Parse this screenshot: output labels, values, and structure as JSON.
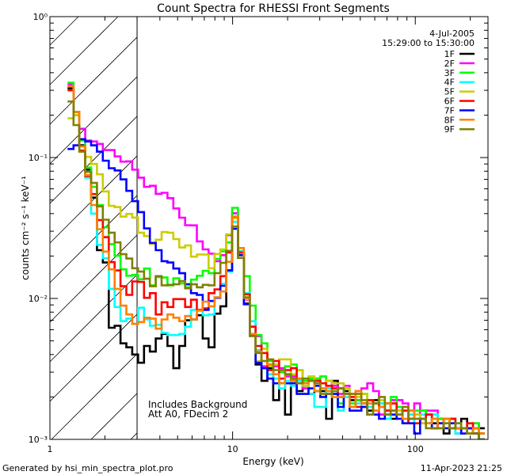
{
  "chart_data": {
    "type": "line",
    "title": "Count Spectra for RHESSI Front Segments",
    "xlabel": "Energy (keV)",
    "ylabel": "counts cm⁻² s⁻¹ keV⁻¹",
    "x_scale": "log",
    "y_scale": "log",
    "xlim": [
      1,
      250
    ],
    "ylim": [
      0.001,
      1
    ],
    "x_ticks": [
      {
        "value": 1,
        "label": "1"
      },
      {
        "value": 10,
        "label": "10"
      },
      {
        "value": 100,
        "label": "100"
      }
    ],
    "y_ticks": [
      {
        "value": 1,
        "label": "10⁰"
      },
      {
        "value": 0.1,
        "label": "10⁻¹"
      },
      {
        "value": 0.01,
        "label": "10⁻²"
      },
      {
        "value": 0.001,
        "label": "10⁻³"
      }
    ],
    "excluded_region_max_kev": 3,
    "date_label": "4-Jul-2005",
    "time_label": "15:29:00 to 15:30:00",
    "annotations": [
      "Includes Background",
      "Att A0, FDecim 2"
    ],
    "series": [
      {
        "name": "1F",
        "color": "#000000",
        "values": [
          0.31,
          0.2,
          0.122,
          0.082,
          0.052,
          0.022,
          0.018,
          0.0062,
          0.0064,
          0.0048,
          0.0045,
          0.004,
          0.0035,
          0.0046,
          0.0042,
          0.0052,
          0.0056,
          0.0046,
          0.0032,
          0.0046,
          0.007,
          0.0071,
          0.0076,
          0.0052,
          0.0045,
          0.0078,
          0.0088,
          0.0158,
          0.038,
          0.021,
          0.0092,
          0.0055,
          0.0034,
          0.0026,
          0.0032,
          0.0019,
          0.0025,
          0.0015,
          0.0026,
          0.0022,
          0.0024,
          0.0021,
          0.0022,
          0.0022,
          0.0014,
          0.0026,
          0.0023,
          0.0022,
          0.0019,
          0.0019,
          0.0018,
          0.0016,
          0.0019,
          0.0015,
          0.0018,
          0.0014,
          0.0016,
          0.0013,
          0.0014,
          0.0015,
          0.0016,
          0.0015,
          0.0013,
          0.0014,
          0.0011,
          0.0014,
          0.0012,
          0.0014,
          0.0012,
          0.0012,
          0.0012
        ]
      },
      {
        "name": "2F",
        "color": "#ff00ff",
        "values": [
          0.33,
          0.21,
          0.16,
          0.132,
          0.13,
          0.125,
          0.113,
          0.113,
          0.102,
          0.0935,
          0.094,
          0.082,
          0.072,
          0.062,
          0.063,
          0.0552,
          0.0562,
          0.0515,
          0.0435,
          0.0374,
          0.0331,
          0.033,
          0.0254,
          0.0223,
          0.0208,
          0.0184,
          0.0203,
          0.0281,
          0.0402,
          0.021,
          0.0098,
          0.0063,
          0.0054,
          0.0033,
          0.0034,
          0.0033,
          0.0032,
          0.0028,
          0.0028,
          0.0026,
          0.0023,
          0.0026,
          0.0027,
          0.0025,
          0.0026,
          0.0024,
          0.0021,
          0.0024,
          0.0017,
          0.0022,
          0.0023,
          0.0025,
          0.0022,
          0.0015,
          0.0016,
          0.0019,
          0.0019,
          0.0018,
          0.0016,
          0.0018,
          0.0013,
          0.0016,
          0.0016,
          0.0014,
          0.0014,
          0.0012,
          0.0011,
          0.0012,
          0.0012,
          0.0013,
          0.0011
        ]
      },
      {
        "name": "3F",
        "color": "#00ff00",
        "values": [
          0.34,
          0.2,
          0.132,
          0.085,
          0.062,
          0.046,
          0.032,
          0.0243,
          0.0201,
          0.0161,
          0.0145,
          0.0147,
          0.0137,
          0.0163,
          0.0124,
          0.0142,
          0.0141,
          0.0124,
          0.0139,
          0.0128,
          0.012,
          0.0136,
          0.0145,
          0.0157,
          0.0151,
          0.0191,
          0.0216,
          0.025,
          0.044,
          0.0217,
          0.0144,
          0.0089,
          0.0055,
          0.0048,
          0.0036,
          0.0034,
          0.003,
          0.0033,
          0.0034,
          0.0031,
          0.0026,
          0.0027,
          0.0027,
          0.0028,
          0.0024,
          0.0021,
          0.0018,
          0.0023,
          0.0018,
          0.0019,
          0.0021,
          0.0019,
          0.0016,
          0.0018,
          0.0016,
          0.002,
          0.0017,
          0.0016,
          0.0015,
          0.0016,
          0.0016,
          0.0015,
          0.0015,
          0.0014,
          0.0013,
          0.0014,
          0.0013,
          0.0012,
          0.0011,
          0.0013,
          0.0011
        ]
      },
      {
        "name": "4F",
        "color": "#00ffff",
        "values": [
          0.32,
          0.2,
          0.112,
          0.072,
          0.04,
          0.024,
          0.0193,
          0.0117,
          0.0087,
          0.0069,
          0.0072,
          0.0066,
          0.0086,
          0.0071,
          0.0064,
          0.0065,
          0.0057,
          0.0055,
          0.0055,
          0.0056,
          0.0063,
          0.0083,
          0.0082,
          0.0076,
          0.0077,
          0.0102,
          0.0127,
          0.0155,
          0.035,
          0.0216,
          0.0109,
          0.0069,
          0.0043,
          0.0032,
          0.0029,
          0.0027,
          0.0023,
          0.0026,
          0.0024,
          0.0026,
          0.0024,
          0.0021,
          0.0017,
          0.0017,
          0.0023,
          0.0021,
          0.0016,
          0.002,
          0.002,
          0.0018,
          0.0017,
          0.0017,
          0.0018,
          0.0018,
          0.0014,
          0.0016,
          0.0015,
          0.0016,
          0.0015,
          0.0013,
          0.0015,
          0.0013,
          0.0015,
          0.0013,
          0.0013,
          0.0013,
          0.0011,
          0.0012,
          0.0012,
          0.0011,
          0.001
        ]
      },
      {
        "name": "5F",
        "color": "#cccc00",
        "values": [
          0.19,
          0.2,
          0.12,
          0.101,
          0.09,
          0.076,
          0.0575,
          0.0454,
          0.0445,
          0.0381,
          0.0398,
          0.0375,
          0.0293,
          0.0277,
          0.0244,
          0.0261,
          0.0296,
          0.0293,
          0.0264,
          0.023,
          0.0238,
          0.0198,
          0.0205,
          0.0205,
          0.0164,
          0.0207,
          0.0223,
          0.0285,
          0.0372,
          0.0209,
          0.0099,
          0.0063,
          0.0036,
          0.0044,
          0.0033,
          0.0034,
          0.0037,
          0.0037,
          0.0029,
          0.0031,
          0.0024,
          0.0028,
          0.0026,
          0.0025,
          0.0026,
          0.0025,
          0.0025,
          0.0023,
          0.0021,
          0.002,
          0.0021,
          0.0019,
          0.0016,
          0.0019,
          0.0016,
          0.0018,
          0.0016,
          0.0017,
          0.0016,
          0.0015,
          0.0013,
          0.0013,
          0.0014,
          0.0013,
          0.0014,
          0.0013,
          0.0012,
          0.0012,
          0.0012,
          0.0011,
          0.0011
        ]
      },
      {
        "name": "6F",
        "color": "#ff0000",
        "values": [
          0.3,
          0.21,
          0.112,
          0.074,
          0.055,
          0.036,
          0.0272,
          0.0181,
          0.0158,
          0.0122,
          0.0106,
          0.0132,
          0.0131,
          0.0101,
          0.0109,
          0.0077,
          0.0094,
          0.0087,
          0.0099,
          0.0099,
          0.0087,
          0.0098,
          0.0083,
          0.0085,
          0.0109,
          0.0116,
          0.0144,
          0.0212,
          0.038,
          0.0212,
          0.0107,
          0.0063,
          0.0046,
          0.0041,
          0.0031,
          0.0036,
          0.0027,
          0.0031,
          0.0032,
          0.0027,
          0.0025,
          0.0026,
          0.0026,
          0.0025,
          0.0024,
          0.0023,
          0.002,
          0.0021,
          0.002,
          0.0017,
          0.0017,
          0.0019,
          0.0018,
          0.0017,
          0.0016,
          0.0018,
          0.0015,
          0.0016,
          0.0013,
          0.0013,
          0.0014,
          0.0015,
          0.0012,
          0.0013,
          0.0014,
          0.0014,
          0.0012,
          0.0012,
          0.0013,
          0.0011,
          0.0011
        ]
      },
      {
        "name": "7F",
        "color": "#0000ff",
        "values": [
          0.115,
          0.122,
          0.135,
          0.13,
          0.122,
          0.11,
          0.095,
          0.084,
          0.081,
          0.07,
          0.058,
          0.049,
          0.041,
          0.0314,
          0.0248,
          0.022,
          0.0184,
          0.018,
          0.0163,
          0.0151,
          0.0126,
          0.0109,
          0.0106,
          0.0083,
          0.0096,
          0.0101,
          0.0123,
          0.0158,
          0.0312,
          0.0203,
          0.0091,
          0.0056,
          0.0035,
          0.0032,
          0.0027,
          0.0025,
          0.0025,
          0.0025,
          0.0025,
          0.0021,
          0.0021,
          0.0023,
          0.0024,
          0.002,
          0.0021,
          0.0021,
          0.0017,
          0.0021,
          0.0016,
          0.0016,
          0.0017,
          0.0015,
          0.0015,
          0.0014,
          0.0015,
          0.0015,
          0.0014,
          0.0013,
          0.0013,
          0.0011,
          0.0014,
          0.0013,
          0.0012,
          0.0013,
          0.0012,
          0.0013,
          0.0012,
          0.0011,
          0.0012,
          0.0011,
          0.001
        ]
      },
      {
        "name": "8F",
        "color": "#ff8000",
        "values": [
          0.32,
          0.21,
          0.12,
          0.075,
          0.046,
          0.031,
          0.0215,
          0.0161,
          0.0117,
          0.0089,
          0.0077,
          0.0066,
          0.0068,
          0.0073,
          0.0072,
          0.0061,
          0.0071,
          0.0077,
          0.0073,
          0.0069,
          0.0075,
          0.0071,
          0.0082,
          0.0095,
          0.0088,
          0.0102,
          0.0112,
          0.0182,
          0.0381,
          0.0228,
          0.0101,
          0.0056,
          0.0042,
          0.0036,
          0.0034,
          0.0029,
          0.0025,
          0.0029,
          0.0026,
          0.0027,
          0.0025,
          0.0026,
          0.0022,
          0.0023,
          0.0022,
          0.002,
          0.002,
          0.0021,
          0.0017,
          0.0022,
          0.0018,
          0.0018,
          0.0016,
          0.0017,
          0.0018,
          0.0016,
          0.0015,
          0.0014,
          0.0016,
          0.0014,
          0.0014,
          0.0013,
          0.0014,
          0.0012,
          0.0014,
          0.0012,
          0.0012,
          0.0012,
          0.0011,
          0.0012,
          0.0011
        ]
      },
      {
        "name": "9F",
        "color": "#808000",
        "values": [
          0.25,
          0.17,
          0.11,
          0.079,
          0.066,
          0.045,
          0.0362,
          0.0293,
          0.025,
          0.0206,
          0.0192,
          0.0164,
          0.0155,
          0.0138,
          0.0122,
          0.0144,
          0.0124,
          0.0125,
          0.0126,
          0.0133,
          0.0118,
          0.0126,
          0.012,
          0.0125,
          0.0124,
          0.0151,
          0.0179,
          0.0218,
          0.0324,
          0.0194,
          0.0102,
          0.0054,
          0.0041,
          0.0036,
          0.0037,
          0.0031,
          0.0031,
          0.0029,
          0.0027,
          0.0025,
          0.0027,
          0.0026,
          0.0025,
          0.0021,
          0.0021,
          0.0022,
          0.0023,
          0.0021,
          0.0021,
          0.0021,
          0.0019,
          0.0015,
          0.0018,
          0.002,
          0.0015,
          0.0016,
          0.0015,
          0.0017,
          0.0014,
          0.0014,
          0.0014,
          0.0012,
          0.0012,
          0.0012,
          0.0013,
          0.0012,
          0.0013,
          0.0012,
          0.0011,
          0.0011,
          0.001
        ]
      }
    ]
  },
  "footer": {
    "generated_by": "Generated by hsi_min_spectra_plot.pro",
    "timestamp": "11-Apr-2023 21:25"
  }
}
